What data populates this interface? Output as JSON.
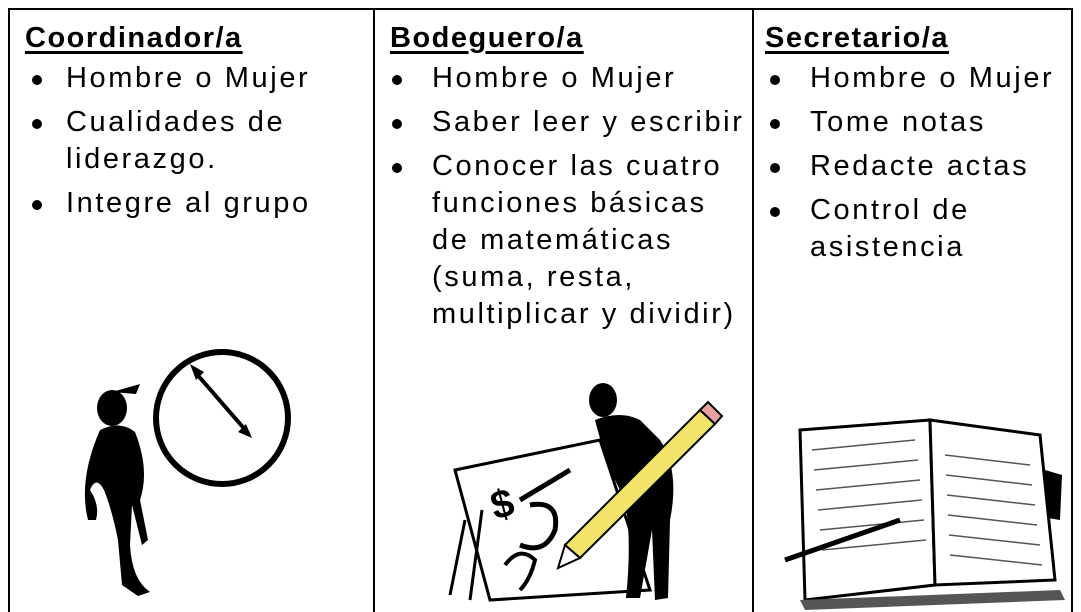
{
  "columns": [
    {
      "header": "Coordinador/a",
      "items": [
        [
          "Hombre o Mujer"
        ],
        [
          "Cualidades de",
          "liderazgo."
        ],
        [
          "Integre al grupo"
        ]
      ]
    },
    {
      "header": "Bodeguero/a",
      "items": [
        [
          "Hombre o Mujer"
        ],
        [
          "Saber leer y escribir"
        ],
        [
          "Conocer las cuatro",
          "funciones básicas",
          "de matemáticas",
          "(suma, resta,",
          "multiplicar y dividir)"
        ]
      ]
    },
    {
      "header": "Secretario/a",
      "items": [
        [
          "Hombre o Mujer"
        ],
        [
          "Tome notas"
        ],
        [
          "Redacte actas"
        ],
        [
          "Control de",
          "asistencia"
        ]
      ]
    }
  ]
}
